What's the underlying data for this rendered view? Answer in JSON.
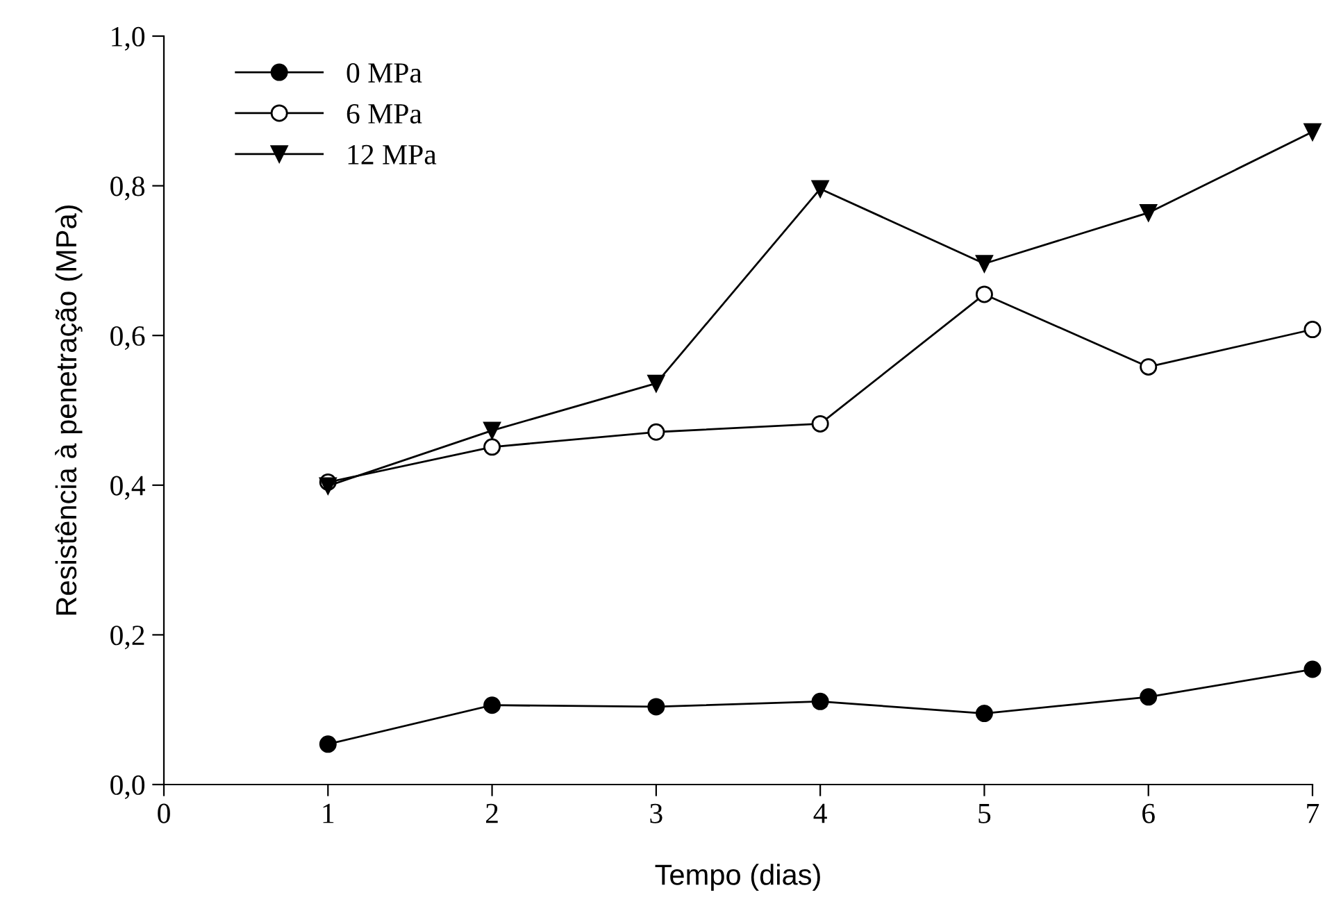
{
  "chart_data": {
    "type": "line",
    "xlabel": "Tempo (dias)",
    "ylabel": "Resistência à penetração (MPa)",
    "x": [
      1,
      2,
      3,
      4,
      5,
      6,
      7
    ],
    "series": [
      {
        "name": "0 MPa",
        "color": "#000000",
        "marker": "circle",
        "values": [
          0.054,
          0.106,
          0.104,
          0.111,
          0.095,
          0.117,
          0.154
        ]
      },
      {
        "name": "6 MPa",
        "color": "#000000",
        "marker": "circle",
        "values": [
          0.404,
          0.451,
          0.471,
          0.482,
          0.655,
          0.558,
          0.608
        ]
      },
      {
        "name": "12 MPa",
        "color": "#000000",
        "marker": "triangle",
        "values": [
          0.399,
          0.473,
          0.536,
          0.796,
          0.696,
          0.764,
          0.872
        ]
      }
    ],
    "xlim": [
      0,
      7
    ],
    "xticks": [
      0,
      1,
      2,
      3,
      4,
      5,
      6,
      7
    ],
    "ylim": [
      0,
      1
    ],
    "yticks": [
      {
        "value": 0,
        "label": "0,0"
      },
      {
        "value": 0.2,
        "label": "0,2"
      },
      {
        "value": 0.4,
        "label": "0,4"
      },
      {
        "value": 0.6,
        "label": "0,6"
      },
      {
        "value": 0.8,
        "label": "0,8"
      },
      {
        "value": 1,
        "label": "1,0"
      }
    ],
    "grid": false,
    "legend": "top left",
    "line_style": "solid"
  }
}
